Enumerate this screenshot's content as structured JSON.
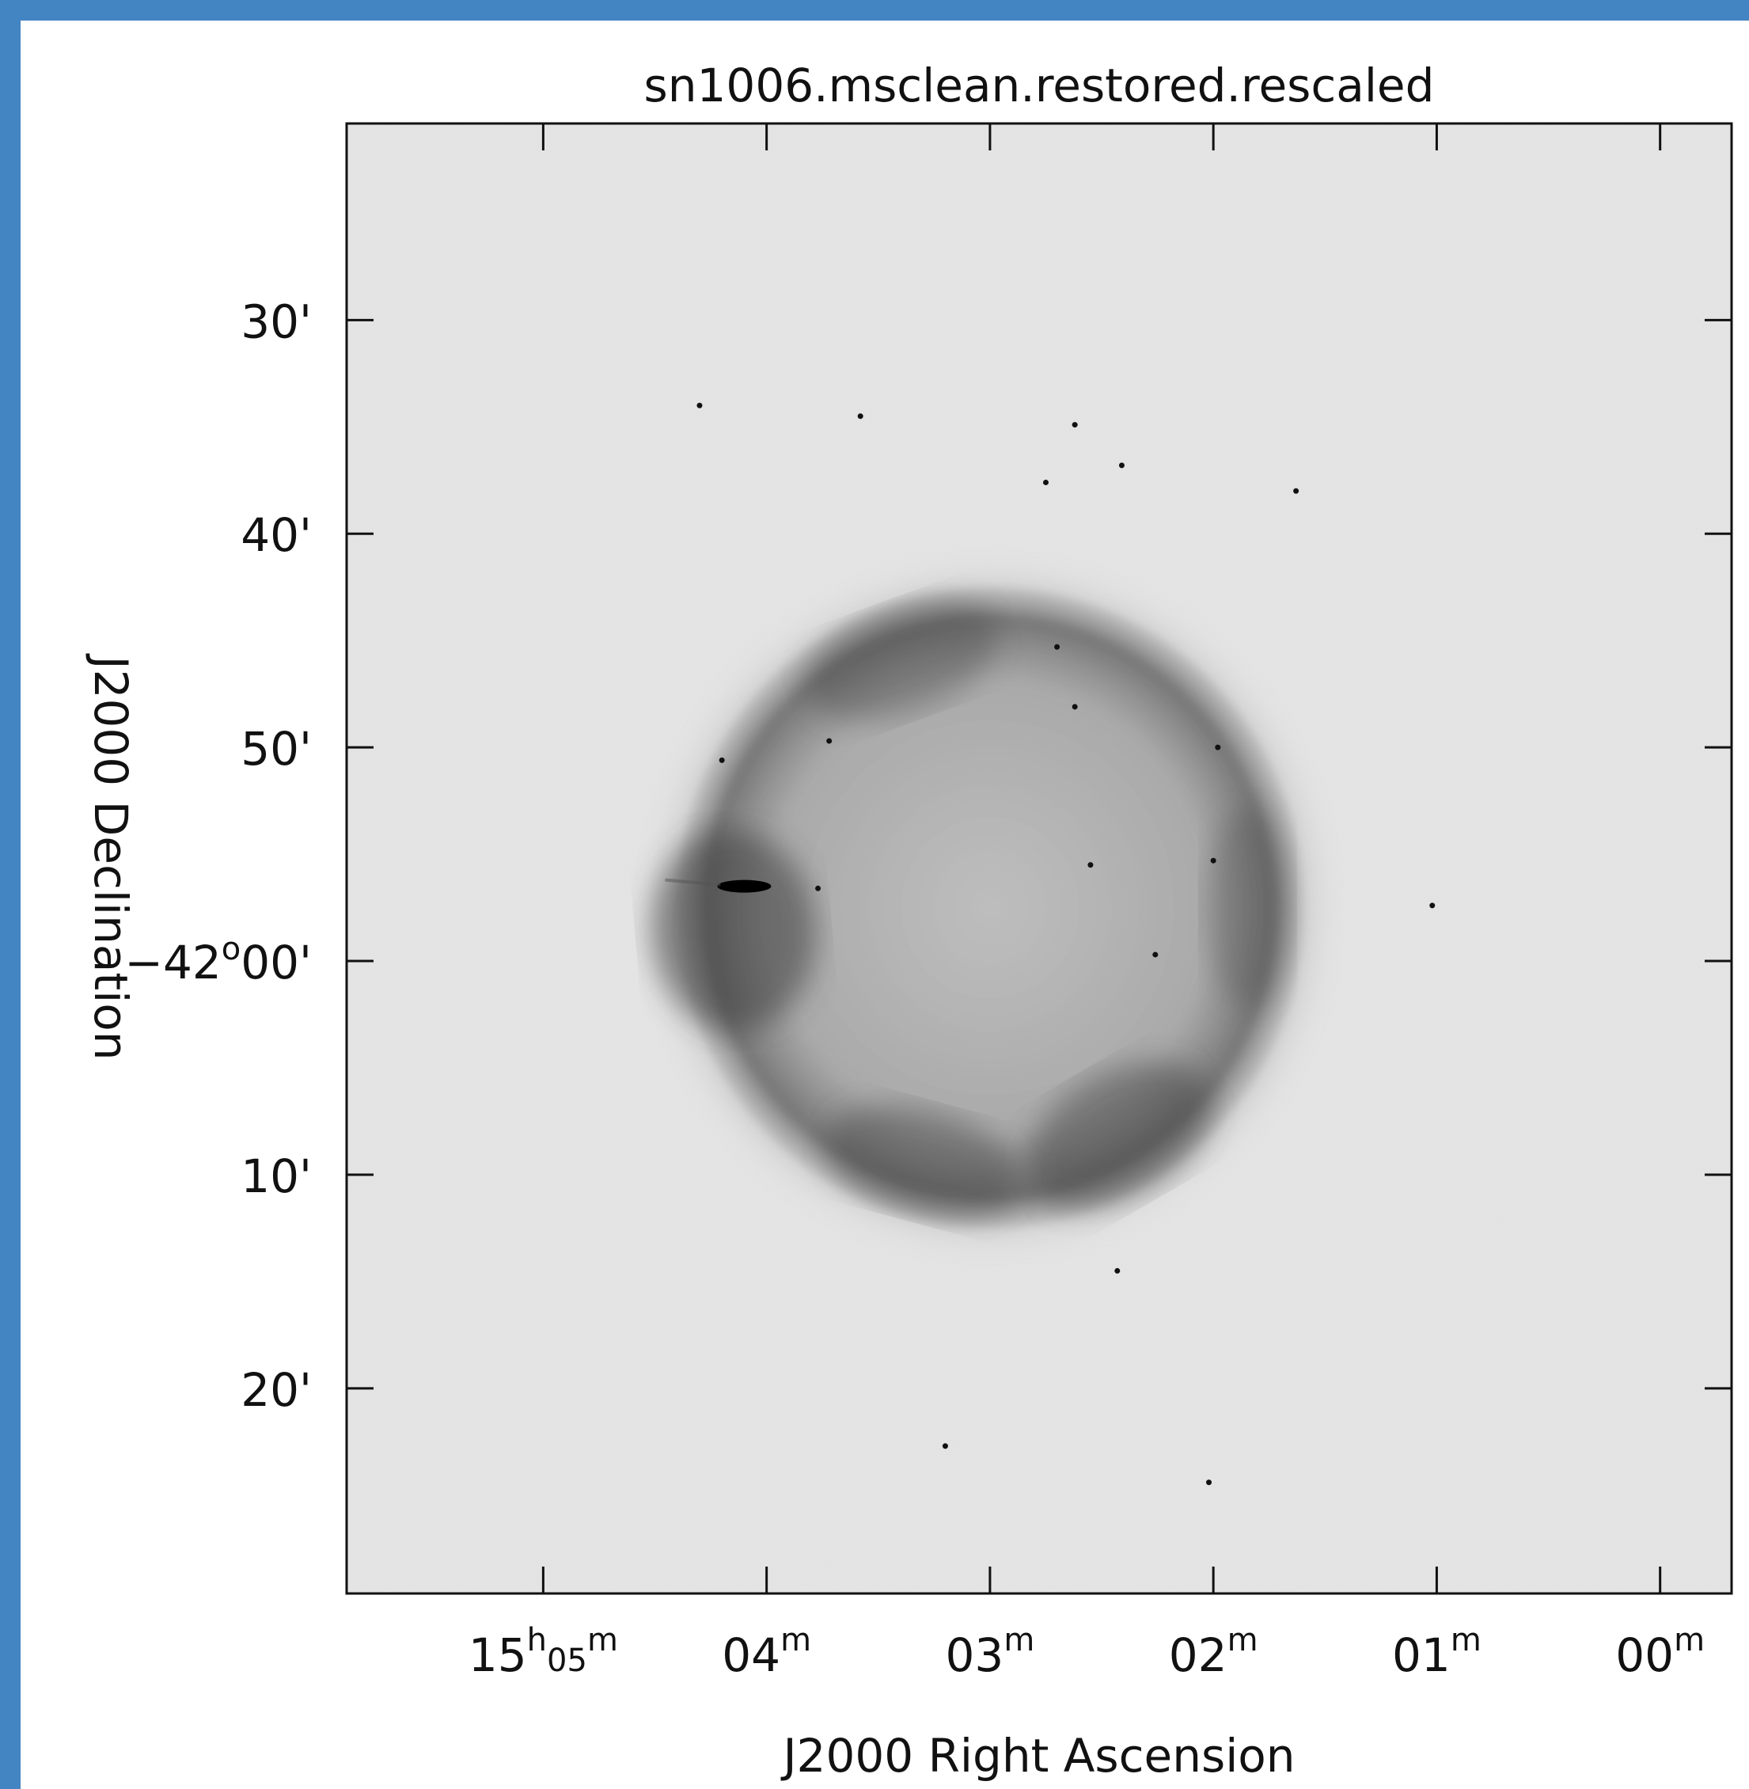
{
  "chart_data": {
    "type": "heatmap",
    "title": "sn1006.msclean.restored.rescaled",
    "xlabel": "J2000 Right Ascension",
    "ylabel": "J2000 Declination",
    "colormap": "inverted-grayscale",
    "x_ticks": [
      {
        "h": "15",
        "m": "05",
        "label_main": "15",
        "label_sup1": "h",
        "label_mid": "05",
        "label_sup2": "m"
      },
      {
        "m": "04",
        "label_main": "04",
        "label_sup2": "m"
      },
      {
        "m": "03",
        "label_main": "03",
        "label_sup2": "m"
      },
      {
        "m": "02",
        "label_main": "02",
        "label_sup2": "m"
      },
      {
        "m": "01",
        "label_main": "01",
        "label_sup2": "m"
      },
      {
        "m": "00",
        "label_main": "00",
        "label_sup2": "m"
      }
    ],
    "x_tick_minutes": [
      5,
      4,
      3,
      2,
      1,
      0
    ],
    "x_range_minutes": [
      5.88,
      -0.32
    ],
    "y_ticks": [
      {
        "arcmin": 30,
        "label": "30'"
      },
      {
        "arcmin": 40,
        "label": "40'"
      },
      {
        "arcmin": 50,
        "label": "50'"
      },
      {
        "arcmin": 60,
        "label_main": "−42",
        "label_sup": "o",
        "label_end": "00'"
      },
      {
        "arcmin": 70,
        "label": "10'"
      },
      {
        "arcmin": 80,
        "label": "20'"
      }
    ],
    "y_range_arcmin": [
      20.8,
      89.6
    ],
    "features": {
      "remnant_shell": {
        "center_ra_min": 3.0,
        "center_dec_arcmin": 57.5,
        "radius_arcmin": 15
      },
      "point_sources": [
        {
          "ra_min": 3.58,
          "dec_arcmin": 34.5
        },
        {
          "ra_min": 2.62,
          "dec_arcmin": 34.9
        },
        {
          "ra_min": 2.41,
          "dec_arcmin": 36.8
        },
        {
          "ra_min": 2.75,
          "dec_arcmin": 37.6
        },
        {
          "ra_min": 1.63,
          "dec_arcmin": 38.0
        },
        {
          "ra_min": 2.7,
          "dec_arcmin": 45.3
        },
        {
          "ra_min": 2.62,
          "dec_arcmin": 48.1
        },
        {
          "ra_min": 3.72,
          "dec_arcmin": 49.7
        },
        {
          "ra_min": 1.98,
          "dec_arcmin": 50.0
        },
        {
          "ra_min": 4.2,
          "dec_arcmin": 50.6
        },
        {
          "ra_min": 2.0,
          "dec_arcmin": 55.3
        },
        {
          "ra_min": 3.77,
          "dec_arcmin": 56.6
        },
        {
          "ra_min": 1.02,
          "dec_arcmin": 57.4
        },
        {
          "ra_min": 2.26,
          "dec_arcmin": 59.7
        },
        {
          "ra_min": 2.55,
          "dec_arcmin": 55.5
        },
        {
          "ra_min": 2.43,
          "dec_arcmin": 74.5
        },
        {
          "ra_min": 2.02,
          "dec_arcmin": 84.4
        },
        {
          "ra_min": 3.2,
          "dec_arcmin": 82.7
        },
        {
          "ra_min": 4.3,
          "dec_arcmin": 34.0
        }
      ]
    }
  }
}
